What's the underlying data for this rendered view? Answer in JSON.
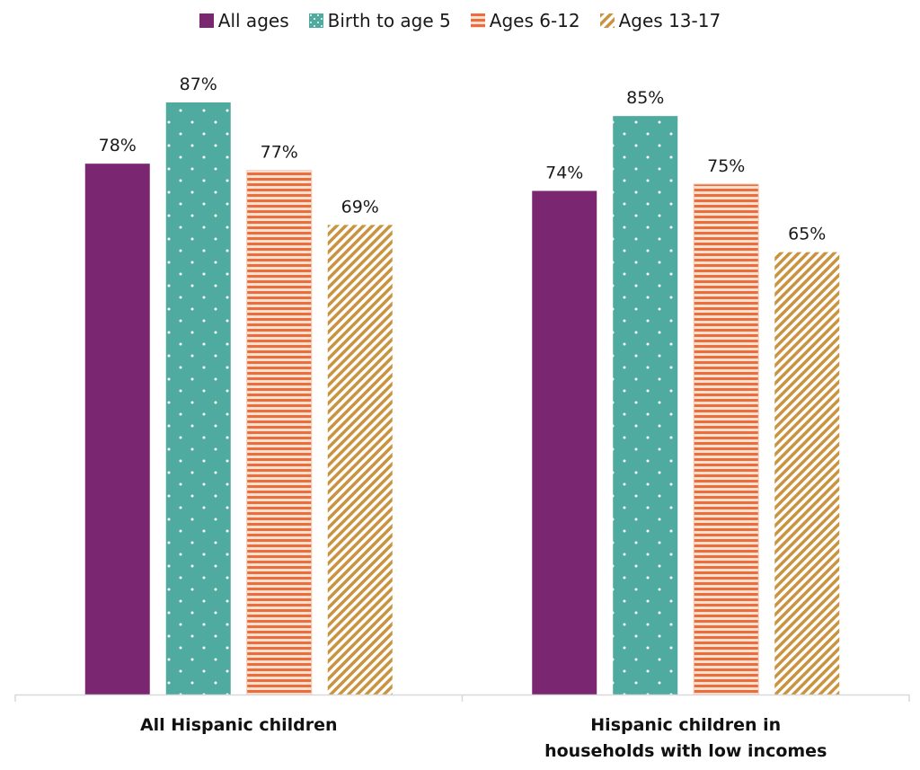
{
  "chart_data": {
    "type": "bar",
    "title": "",
    "xlabel": "",
    "ylabel": "",
    "ylim": [
      0,
      100
    ],
    "grid": false,
    "legend_position": "top-center",
    "categories": [
      "All Hispanic children",
      "Hispanic children in households with low incomes"
    ],
    "series": [
      {
        "name": "All ages",
        "values": [
          78,
          74
        ],
        "color": "#7a2670",
        "pattern": "solid"
      },
      {
        "name": "Birth to age 5",
        "values": [
          87,
          85
        ],
        "color": "#4fab9f",
        "pattern": "dots"
      },
      {
        "name": "Ages 6-12",
        "values": [
          77,
          75
        ],
        "color": "#ea6d3c",
        "pattern": "horizontal-stripes"
      },
      {
        "name": "Ages 13-17",
        "values": [
          69,
          65
        ],
        "color": "#c99340",
        "pattern": "diagonal-stripes"
      }
    ],
    "value_format": "{v}%"
  }
}
